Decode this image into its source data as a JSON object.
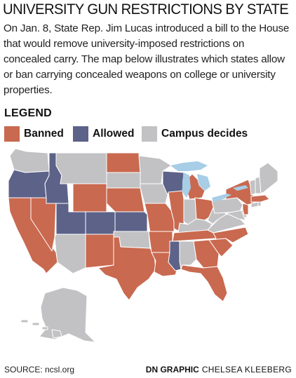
{
  "title": "UNIVERSITY GUN RESTRICTIONS BY STATE",
  "intro": "On Jan. 8, State Rep. Jim Lucas introduced a bill to the House that would remove university-imposed restrictions on concealed carry. The map below illustrates which states allow or ban carrying concealed weapons on college or university properties.",
  "legend": {
    "title": "LEGEND",
    "items": [
      {
        "label": "Banned",
        "color": "#c9694f"
      },
      {
        "label": "Allowed",
        "color": "#5d6289"
      },
      {
        "label": "Campus decides",
        "color": "#c2c2c4"
      }
    ]
  },
  "colors": {
    "banned": "#c9694f",
    "allowed": "#5d6289",
    "campus": "#c2c2c4",
    "water": "#a8cde6",
    "border": "#ffffff"
  },
  "states": {
    "banned": [
      "CA",
      "NV",
      "WY",
      "NE",
      "ND",
      "NM",
      "TX",
      "LA",
      "IL",
      "MO",
      "AR",
      "MI",
      "OH",
      "NC",
      "SC",
      "GA",
      "FL",
      "TN",
      "NY",
      "NJ",
      "MA"
    ],
    "allowed": [
      "OR",
      "ID",
      "UT",
      "CO",
      "KS",
      "WI",
      "MS"
    ],
    "campus": [
      "WA",
      "MT",
      "SD",
      "MN",
      "IA",
      "AZ",
      "OK",
      "IN",
      "KY",
      "AL",
      "VA",
      "WV",
      "PA",
      "MD",
      "DE",
      "CT",
      "RI",
      "VT",
      "NH",
      "ME",
      "AK",
      "HI"
    ]
  },
  "footer": {
    "source": "SOURCE: ncsl.org",
    "credit_bold": "DN GRAPHIC",
    "credit_name": "CHELSEA KLEEBERG"
  }
}
